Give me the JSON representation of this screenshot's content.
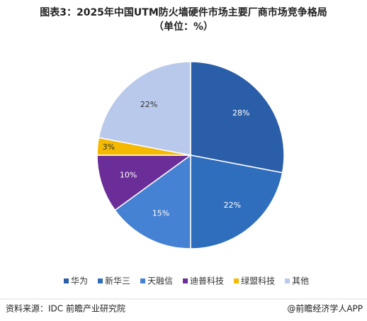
{
  "chart_data": {
    "type": "pie",
    "title": "图表3：2025年中国UTM防火墙硬件市场主要厂商市场竞争格局",
    "subtitle": "（单位：%）",
    "categories": [
      "华为",
      "新华三",
      "天融信",
      "迪普科技",
      "绿盟科技",
      "其他"
    ],
    "values": [
      28,
      22,
      15,
      10,
      3,
      22
    ],
    "value_labels": [
      "28%",
      "22%",
      "15%",
      "10%",
      "3%",
      "22%"
    ],
    "colors": [
      "#2b5ea9",
      "#2f6dbd",
      "#4682d3",
      "#6b2d97",
      "#f4b900",
      "#b9c9ec"
    ],
    "source": "资料来源：IDC 前瞻产业研究院",
    "credit": "@前瞻经济学人APP"
  }
}
